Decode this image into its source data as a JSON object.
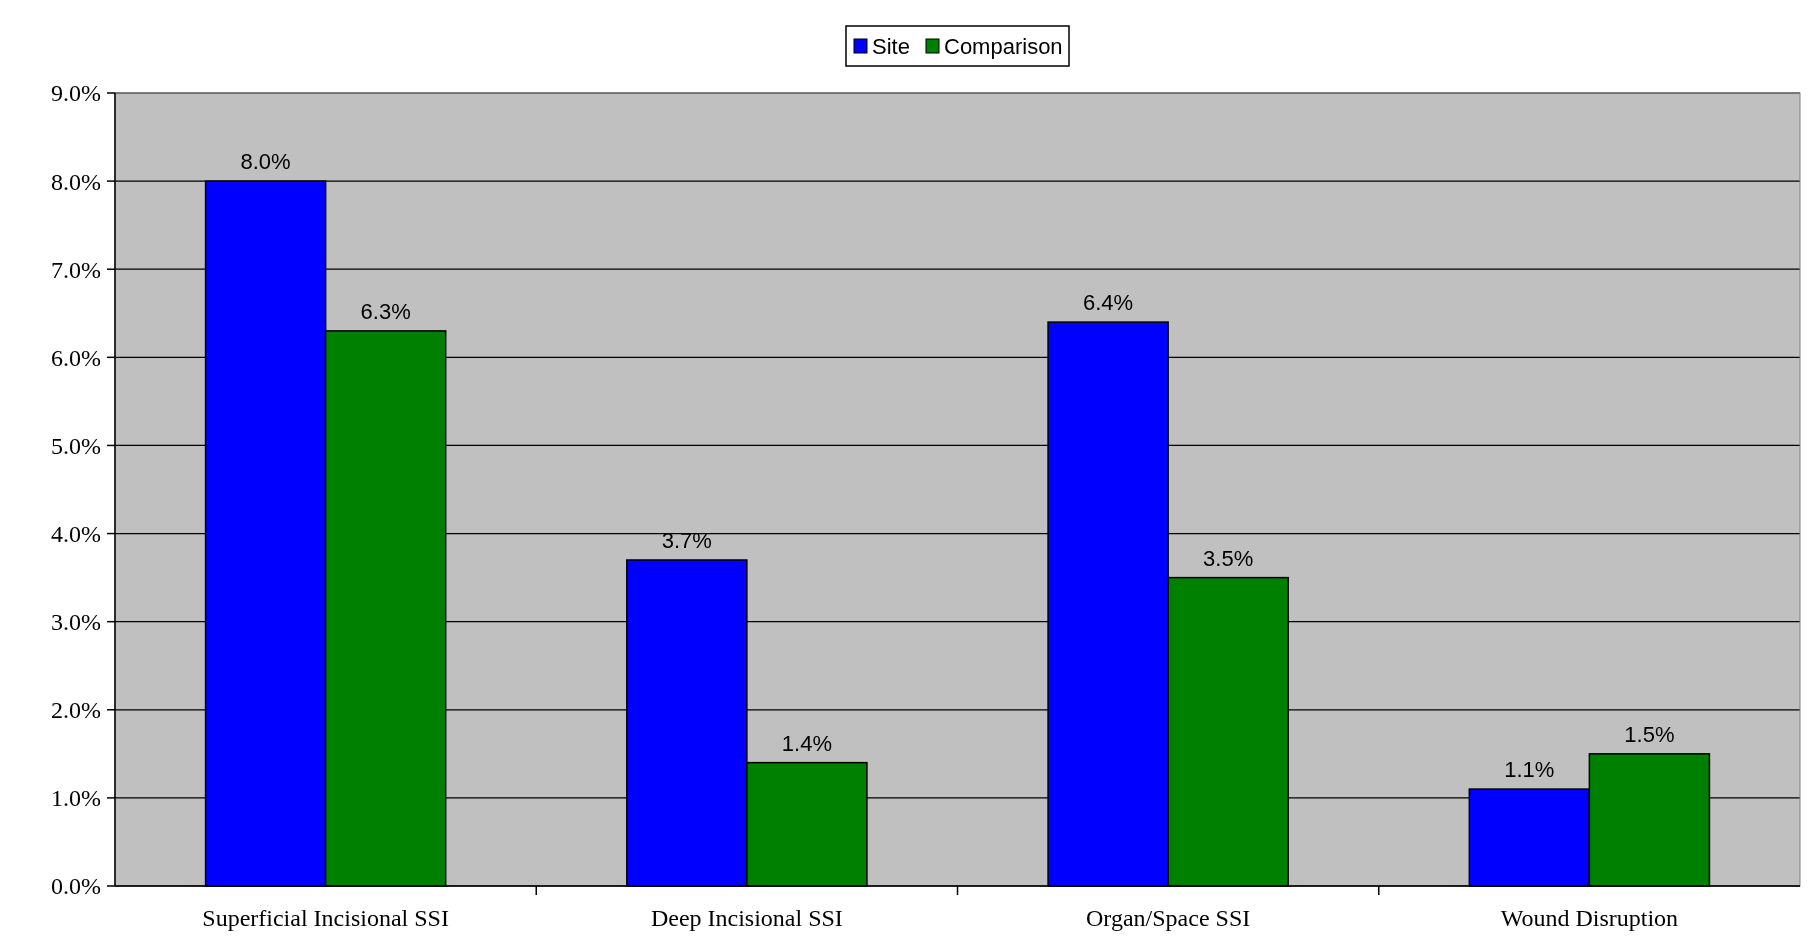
{
  "chart_data": {
    "type": "bar",
    "categories": [
      "Superficial Incisional SSI",
      "Deep Incisional SSI",
      "Organ/Space SSI",
      "Wound Disruption"
    ],
    "series": [
      {
        "name": "Site",
        "color": "#0000ff",
        "values": [
          8.0,
          3.7,
          6.4,
          1.1
        ],
        "value_labels": [
          "8.0%",
          "3.7%",
          "6.4%",
          "1.1%"
        ]
      },
      {
        "name": "Comparison",
        "color": "#008000",
        "values": [
          6.3,
          1.4,
          3.5,
          1.5
        ],
        "value_labels": [
          "6.3%",
          "1.4%",
          "3.5%",
          "1.5%"
        ]
      }
    ],
    "ylim": [
      0,
      9
    ],
    "yticks": [
      {
        "value": 0,
        "label": "0.0%"
      },
      {
        "value": 1,
        "label": "1.0%"
      },
      {
        "value": 2,
        "label": "2.0%"
      },
      {
        "value": 3,
        "label": "3.0%"
      },
      {
        "value": 4,
        "label": "4.0%"
      },
      {
        "value": 5,
        "label": "5.0%"
      },
      {
        "value": 6,
        "label": "6.0%"
      },
      {
        "value": 7,
        "label": "7.0%"
      },
      {
        "value": 8,
        "label": "8.0%"
      },
      {
        "value": 9,
        "label": "9.0%"
      }
    ],
    "grid": "y",
    "legend": "top"
  }
}
